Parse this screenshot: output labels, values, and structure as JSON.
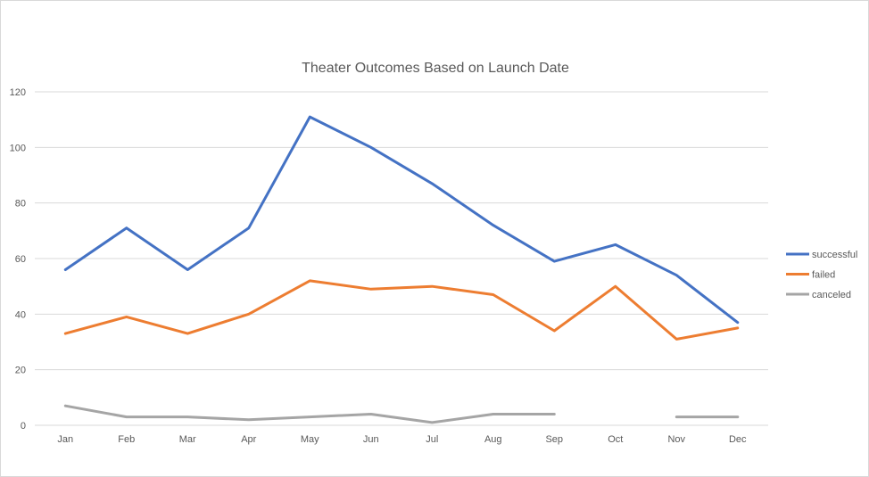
{
  "chart_data": {
    "type": "line",
    "title": "Theater Outcomes Based on Launch Date",
    "xlabel": "",
    "ylabel": "",
    "categories": [
      "Jan",
      "Feb",
      "Mar",
      "Apr",
      "May",
      "Jun",
      "Jul",
      "Aug",
      "Sep",
      "Oct",
      "Nov",
      "Dec"
    ],
    "ylim": [
      0,
      120
    ],
    "yticks": [
      "0",
      "20",
      "40",
      "60",
      "80",
      "100",
      "120"
    ],
    "grid": true,
    "legend_position": "right",
    "series": [
      {
        "name": "successful",
        "color": "#4472C4",
        "values": [
          56,
          71,
          56,
          71,
          111,
          100,
          87,
          72,
          59,
          65,
          54,
          37
        ]
      },
      {
        "name": "failed",
        "color": "#ED7D31",
        "values": [
          33,
          39,
          33,
          40,
          52,
          49,
          50,
          47,
          34,
          50,
          31,
          35
        ]
      },
      {
        "name": "canceled",
        "color": "#A5A5A5",
        "values": [
          7,
          3,
          3,
          2,
          3,
          4,
          1,
          4,
          4,
          null,
          3,
          3
        ]
      }
    ]
  }
}
